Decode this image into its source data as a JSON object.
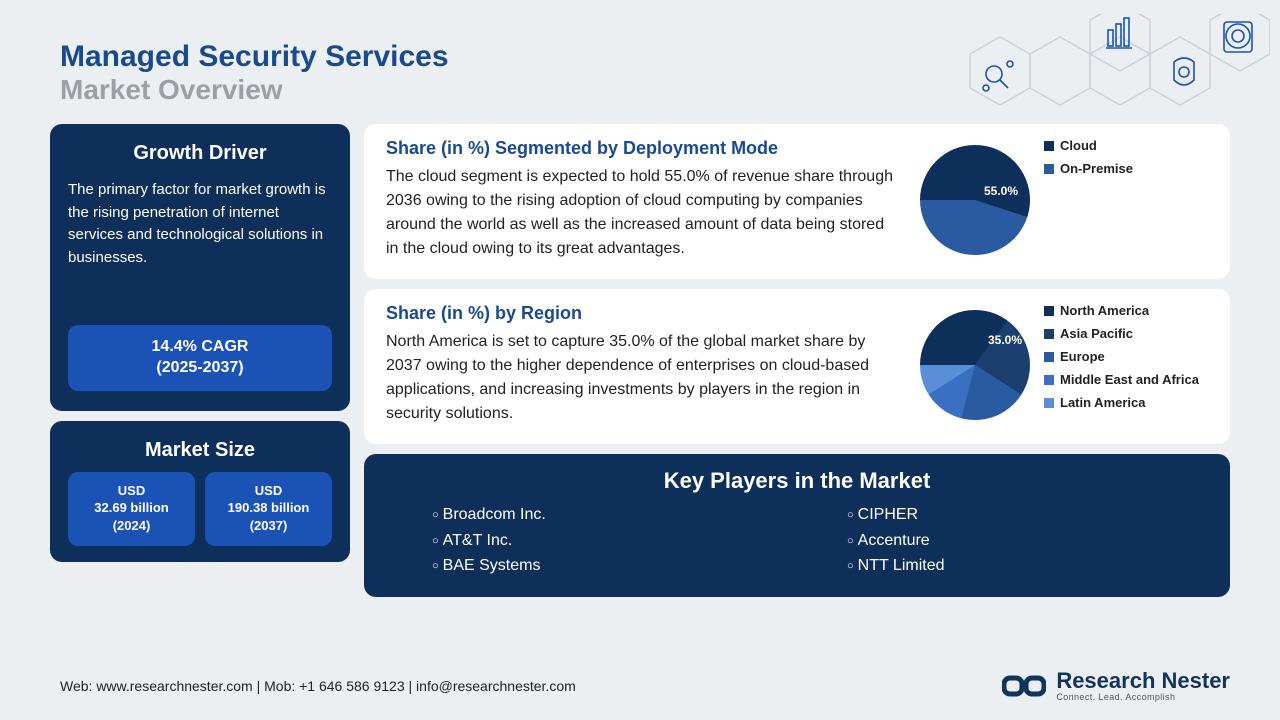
{
  "header": {
    "title": "Managed Security Services",
    "subtitle": "Market Overview"
  },
  "growth_driver": {
    "title": "Growth Driver",
    "body": "The primary factor for market growth is the rising penetration of internet services and technological solutions in businesses.",
    "cagr_line1": "14.4% CAGR",
    "cagr_line2": "(2025-2037)"
  },
  "market_size": {
    "title": "Market Size",
    "box1_line1": "USD",
    "box1_line2": "32.69 billion",
    "box1_line3": "(2024)",
    "box2_line1": "USD",
    "box2_line2": "190.38 billion",
    "box2_line3": "(2037)"
  },
  "deployment": {
    "title": "Share (in %) Segmented by Deployment Mode",
    "body": "The cloud segment is expected to hold 55.0% of revenue share through 2036 owing to the rising adoption of cloud computing by companies around the world as well as the increased amount of data being stored in the cloud owing to its great advantages.",
    "highlight_label": "55.0%",
    "chart": {
      "type": "pie",
      "slices": [
        {
          "label": "Cloud",
          "value": 55,
          "color": "#0e2f5a"
        },
        {
          "label": "On-Premise",
          "value": 45,
          "color": "#2a5aa0"
        }
      ]
    }
  },
  "region": {
    "title": "Share (in %) by Region",
    "body": "North America is set to capture 35.0% of the global market share by 2037 owing to the higher dependence of enterprises on cloud-based applications, and increasing investments by players in the region in security solutions.",
    "highlight_label": "35.0%",
    "chart": {
      "type": "pie",
      "slices": [
        {
          "label": "North America",
          "value": 35,
          "color": "#0e2f5a"
        },
        {
          "label": "Asia Pacific",
          "value": 24,
          "color": "#1b3f6e"
        },
        {
          "label": "Europe",
          "value": 20,
          "color": "#2a5aa0"
        },
        {
          "label": "Middle East and Africa",
          "value": 12,
          "color": "#3a6fc2"
        },
        {
          "label": "Latin America",
          "value": 9,
          "color": "#5a8fd8"
        }
      ]
    }
  },
  "key_players": {
    "title": "Key Players in the Market",
    "col1": [
      "Broadcom Inc.",
      "AT&T Inc.",
      "BAE Systems"
    ],
    "col2": [
      "CIPHER",
      "Accenture",
      "NTT Limited"
    ]
  },
  "footer": {
    "contact": "Web: www.researchnester.com | Mob: +1 646 586 9123 | info@researchnester.com",
    "brand_main": "Research",
    "brand_accent": "Nester",
    "brand_tag": "Connect. Lead. Accomplish"
  },
  "colors": {
    "bg": "#eceff1",
    "primary_dark": "#0e2f5a",
    "primary_mid": "#1a52b5",
    "heading": "#1a4a8e",
    "subheading": "#9aa0a6",
    "white": "#ffffff"
  }
}
